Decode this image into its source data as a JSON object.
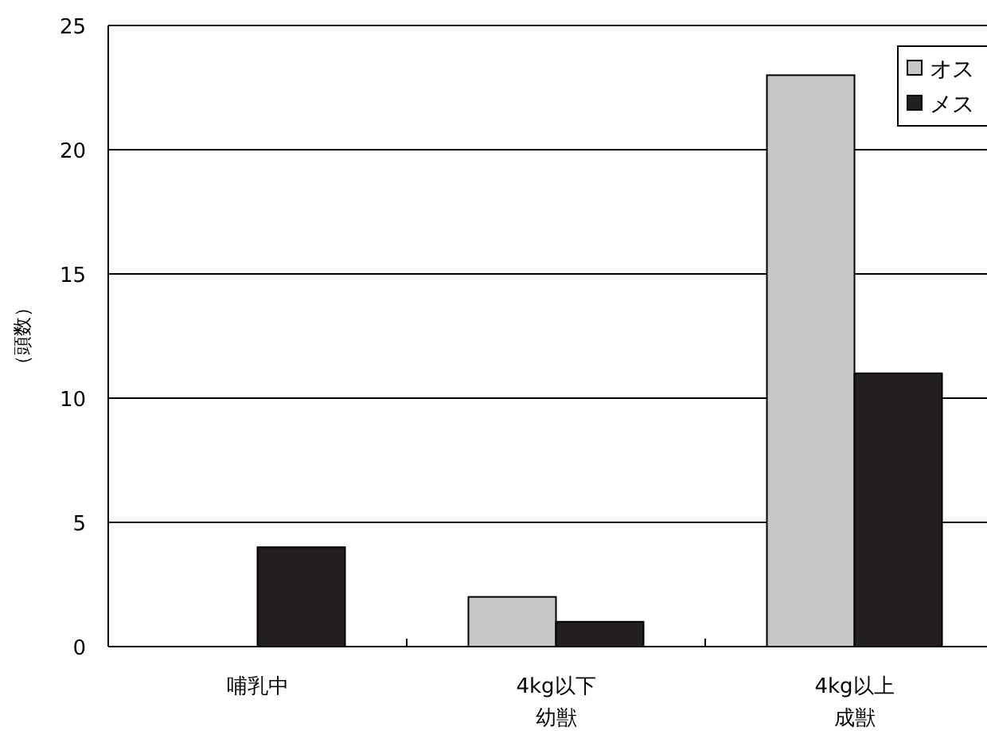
{
  "chart_data": {
    "type": "bar",
    "ylabel": "（頭数）",
    "categories": [
      "哺乳中",
      "4kg以下幼獣",
      "4kg以上成獣"
    ],
    "series": [
      {
        "name": "オス",
        "color": "#c6c7c9",
        "values": [
          0,
          2,
          23
        ]
      },
      {
        "name": "メス",
        "color": "#231f20",
        "values": [
          4,
          1,
          11
        ]
      }
    ],
    "ylim": [
      0,
      25
    ],
    "yticks": [
      0,
      5,
      10,
      15,
      20,
      25
    ],
    "grid": "y",
    "legend": "top right"
  }
}
